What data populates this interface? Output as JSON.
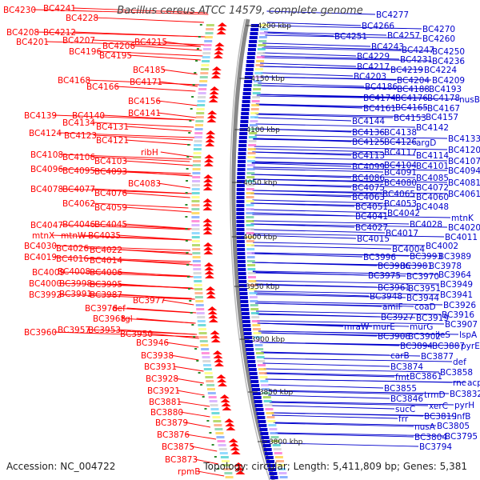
{
  "title": "Bacillus cereus ATCC 14579, complete genome",
  "accession": "Accession: NC_004722",
  "topology": "Topology: circular; Length: 5,411,809 bp; Genes: 5,381",
  "colors": {
    "forward": "#ff0000",
    "reverse": "#0000cc",
    "backbone": "#888888"
  },
  "kbp_markers": [
    "4200 kbp",
    "4150 kbp",
    "4100 kbp",
    "4050 kbp",
    "4000 kbp",
    "3950 kbp",
    "3900 kbp",
    "3850 kbp",
    "3800 kbp"
  ],
  "left_labels": [
    [
      "BC4230",
      4,
      12
    ],
    [
      "BC4241",
      54,
      10
    ],
    [
      "BC4228",
      82,
      22
    ],
    [
      "BC4208",
      8,
      40
    ],
    [
      "BC4212",
      54,
      40
    ],
    [
      "BC4201",
      20,
      52
    ],
    [
      "BC4207",
      78,
      50
    ],
    [
      "BC4206",
      128,
      57
    ],
    [
      "BC4215",
      168,
      52
    ],
    [
      "BC4196",
      86,
      64
    ],
    [
      "BC4195",
      124,
      69
    ],
    [
      "BC4185",
      166,
      87
    ],
    [
      "BC4168",
      72,
      100
    ],
    [
      "BC4171",
      162,
      102
    ],
    [
      "BC4166",
      108,
      108
    ],
    [
      "BC4156",
      160,
      126
    ],
    [
      "BC4139",
      30,
      144
    ],
    [
      "BC4140",
      90,
      144
    ],
    [
      "BC4141",
      160,
      141
    ],
    [
      "BC4134",
      78,
      153
    ],
    [
      "BC4131",
      120,
      158
    ],
    [
      "BC4124",
      36,
      166
    ],
    [
      "BC4123",
      80,
      169
    ],
    [
      "BC4121",
      120,
      175
    ],
    [
      "ribH",
      176,
      190
    ],
    [
      "BC4108",
      38,
      193
    ],
    [
      "BC4106",
      78,
      196
    ],
    [
      "BC4103",
      118,
      201
    ],
    [
      "BC4096",
      38,
      211
    ],
    [
      "BC4095",
      78,
      213
    ],
    [
      "BC4093",
      118,
      214
    ],
    [
      "BC4083",
      160,
      229
    ],
    [
      "BC4078",
      38,
      236
    ],
    [
      "BC4077",
      78,
      236
    ],
    [
      "BC4076",
      118,
      241
    ],
    [
      "BC4062",
      78,
      254
    ],
    [
      "BC4059",
      118,
      259
    ],
    [
      "BC4047",
      38,
      281
    ],
    [
      "BC4046",
      78,
      280
    ],
    [
      "BC4045",
      118,
      280
    ],
    [
      "mtnX",
      40,
      294
    ],
    [
      "mtnW",
      76,
      294
    ],
    [
      "BC4035",
      110,
      294
    ],
    [
      "BC4030",
      30,
      307
    ],
    [
      "BC4026",
      70,
      310
    ],
    [
      "BC4022",
      112,
      312
    ],
    [
      "BC4019",
      30,
      321
    ],
    [
      "BC4016",
      70,
      323
    ],
    [
      "BC4014",
      112,
      325
    ],
    [
      "BC4009",
      40,
      340
    ],
    [
      "BC4008",
      72,
      339
    ],
    [
      "BC4006",
      112,
      340
    ],
    [
      "BC4000",
      36,
      354
    ],
    [
      "BC3998",
      74,
      354
    ],
    [
      "BC3995",
      112,
      355
    ],
    [
      "BC3992",
      36,
      368
    ],
    [
      "BC3991",
      74,
      367
    ],
    [
      "BC3987",
      112,
      368
    ],
    [
      "BC3977",
      166,
      375
    ],
    [
      "BC3976",
      106,
      385
    ],
    [
      "def",
      140,
      385
    ],
    [
      "BC3968",
      116,
      398
    ],
    [
      "tgl",
      152,
      398
    ],
    [
      "BC3960",
      30,
      415
    ],
    [
      "BC3957",
      72,
      412
    ],
    [
      "BC3953",
      110,
      412
    ],
    [
      "BC3950",
      150,
      417
    ],
    [
      "BC3946",
      170,
      428
    ],
    [
      "BC3938",
      176,
      444
    ],
    [
      "BC3931",
      180,
      458
    ],
    [
      "BC3928",
      182,
      473
    ],
    [
      "BC3921",
      184,
      488
    ],
    [
      "BC3881",
      186,
      502
    ],
    [
      "BC3880",
      188,
      515
    ],
    [
      "BC3879",
      194,
      528
    ],
    [
      "BC3876",
      196,
      543
    ],
    [
      "BC3875",
      202,
      558
    ],
    [
      "BC3873",
      206,
      574
    ],
    [
      "rpmB",
      222,
      589
    ]
  ],
  "right_labels": [
    [
      "BC4277",
      470,
      18
    ],
    [
      "BC4266",
      452,
      32
    ],
    [
      "BC4270",
      528,
      36
    ],
    [
      "BC4251",
      418,
      45
    ],
    [
      "BC4257",
      484,
      44
    ],
    [
      "BC4260",
      528,
      48
    ],
    [
      "BC4243",
      464,
      58
    ],
    [
      "BC4247",
      502,
      62
    ],
    [
      "BC4250",
      540,
      64
    ],
    [
      "BC4229",
      446,
      70
    ],
    [
      "BC4231",
      500,
      74
    ],
    [
      "BC4236",
      540,
      76
    ],
    [
      "BC4217",
      446,
      83
    ],
    [
      "BC4219",
      488,
      87
    ],
    [
      "BC4224",
      530,
      87
    ],
    [
      "BC4203",
      442,
      95
    ],
    [
      "BC4204",
      496,
      100
    ],
    [
      "BC4209",
      540,
      100
    ],
    [
      "BC4186",
      456,
      108
    ],
    [
      "BC4188",
      496,
      111
    ],
    [
      "BC4193",
      536,
      111
    ],
    [
      "BC4174",
      454,
      122
    ],
    [
      "BC4176",
      494,
      122
    ],
    [
      "BC4178",
      534,
      122
    ],
    [
      "nusB",
      574,
      124
    ],
    [
      "BC4161",
      454,
      135
    ],
    [
      "BC4165",
      494,
      134
    ],
    [
      "BC4167",
      534,
      135
    ],
    [
      "BC4144",
      440,
      151
    ],
    [
      "BC4153",
      492,
      147
    ],
    [
      "BC4157",
      532,
      146
    ],
    [
      "BC4136",
      440,
      165
    ],
    [
      "BC4138",
      480,
      165
    ],
    [
      "BC4142",
      520,
      159
    ],
    [
      "BC4125",
      440,
      177
    ],
    [
      "BC4126",
      480,
      177
    ],
    [
      "argD",
      520,
      178
    ],
    [
      "BC4133",
      560,
      173
    ],
    [
      "BC4113",
      440,
      194
    ],
    [
      "BC4117",
      480,
      190
    ],
    [
      "BC4114",
      520,
      194
    ],
    [
      "BC4120",
      560,
      187
    ],
    [
      "BC4099",
      440,
      208
    ],
    [
      "BC4104",
      480,
      206
    ],
    [
      "BC4101",
      520,
      207
    ],
    [
      "BC4107",
      560,
      201
    ],
    [
      "BC4086",
      440,
      222
    ],
    [
      "BC4091",
      480,
      215
    ],
    [
      "BC4085",
      520,
      222
    ],
    [
      "BC4094",
      560,
      213
    ],
    [
      "BC4075",
      440,
      234
    ],
    [
      "BC4080",
      480,
      228
    ],
    [
      "BC4072",
      520,
      234
    ],
    [
      "BC4081",
      560,
      228
    ],
    [
      "BC4063",
      440,
      246
    ],
    [
      "BC4065",
      478,
      242
    ],
    [
      "BC4060",
      520,
      246
    ],
    [
      "BC4061",
      560,
      242
    ],
    [
      "BC4051",
      444,
      258
    ],
    [
      "BC4053",
      480,
      254
    ],
    [
      "BC4048",
      520,
      258
    ],
    [
      "BC4041",
      444,
      270
    ],
    [
      "BC4042",
      484,
      266
    ],
    [
      "mtnK",
      564,
      272
    ],
    [
      "BC4027",
      444,
      284
    ],
    [
      "BC4028",
      512,
      280
    ],
    [
      "BC4020",
      560,
      284
    ],
    [
      "BC4015",
      446,
      298
    ],
    [
      "BC4017",
      482,
      291
    ],
    [
      "BC4011",
      556,
      296
    ],
    [
      "BC4004",
      490,
      311
    ],
    [
      "BC4002",
      532,
      307
    ],
    [
      "BC3996",
      454,
      321
    ],
    [
      "BC3993",
      512,
      320
    ],
    [
      "BC3989",
      548,
      320
    ],
    [
      "BC3986",
      472,
      332
    ],
    [
      "BC3981",
      500,
      332
    ],
    [
      "BC3978",
      536,
      332
    ],
    [
      "BC3975",
      460,
      344
    ],
    [
      "BC3970",
      508,
      345
    ],
    [
      "BC3964",
      548,
      343
    ],
    [
      "BC3961",
      472,
      359
    ],
    [
      "BC3951",
      510,
      360
    ],
    [
      "BC3949",
      550,
      355
    ],
    [
      "BC3948",
      462,
      370
    ],
    [
      "BC3944",
      508,
      372
    ],
    [
      "BC3941",
      550,
      368
    ],
    [
      "amiF",
      478,
      383
    ],
    [
      "coaD",
      518,
      383
    ],
    [
      "BC3926",
      554,
      381
    ],
    [
      "BC3927",
      476,
      396
    ],
    [
      "BC3919",
      520,
      397
    ],
    [
      "BC3916",
      552,
      393
    ],
    [
      "mraW",
      430,
      408
    ],
    [
      "murE",
      466,
      408
    ],
    [
      "murG",
      512,
      408
    ],
    [
      "BC3907",
      556,
      405
    ],
    [
      "BC3908",
      472,
      420
    ],
    [
      "BC3902",
      510,
      420
    ],
    [
      "ileS",
      544,
      418
    ],
    [
      "lspA",
      574,
      418
    ],
    [
      "BC3894",
      500,
      432
    ],
    [
      "BC3887",
      540,
      432
    ],
    [
      "pyrE",
      576,
      432
    ],
    [
      "carB",
      488,
      444
    ],
    [
      "BC3877",
      526,
      445
    ],
    [
      "BC3874",
      488,
      458
    ],
    [
      "def",
      566,
      452
    ],
    [
      "fmt",
      494,
      471
    ],
    [
      "BC3861",
      512,
      470
    ],
    [
      "BC3858",
      550,
      465
    ],
    [
      "rnc",
      566,
      478
    ],
    [
      "acpP",
      584,
      478
    ],
    [
      "BC3855",
      480,
      485
    ],
    [
      "BC3846",
      488,
      498
    ],
    [
      "trmD",
      530,
      493
    ],
    [
      "BC3832",
      562,
      492
    ],
    [
      "sucC",
      494,
      511
    ],
    [
      "xerC",
      536,
      507
    ],
    [
      "pyrH",
      568,
      506
    ],
    [
      "frr",
      498,
      523
    ],
    [
      "BC3819",
      530,
      520
    ],
    [
      "infB",
      568,
      520
    ],
    [
      "nusA",
      518,
      533
    ],
    [
      "BC3805",
      546,
      532
    ],
    [
      "BC3804",
      518,
      546
    ],
    [
      "BC3795",
      556,
      545
    ],
    [
      "BC3794",
      524,
      558
    ]
  ]
}
